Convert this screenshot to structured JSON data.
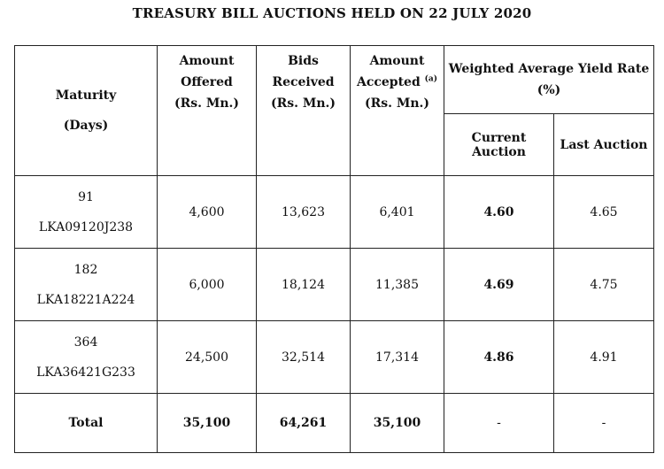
{
  "title": "TREASURY BILL AUCTIONS HELD ON 22 JULY 2020",
  "headers": {
    "maturity": [
      "Maturity",
      "(Days)"
    ],
    "amount_offered": [
      "Amount",
      "Offered",
      "(Rs. Mn.)"
    ],
    "bids_received": [
      "Bids",
      "Received",
      "(Rs. Mn.)"
    ],
    "amount_accepted": [
      "Amount",
      "Accepted",
      "(a)",
      "(Rs. Mn.)"
    ],
    "yield_group": [
      "Weighted Average Yield Rate",
      "(%)"
    ],
    "current_auction": "Current Auction",
    "last_auction": "Last Auction"
  },
  "rows": [
    {
      "days": "91",
      "isin": "LKA09120J238",
      "offered": "4,600",
      "bids": "13,623",
      "accepted": "6,401",
      "current": "4.60",
      "last": "4.65"
    },
    {
      "days": "182",
      "isin": "LKA18221A224",
      "offered": "6,000",
      "bids": "18,124",
      "accepted": "11,385",
      "current": "4.69",
      "last": "4.75"
    },
    {
      "days": "364",
      "isin": "LKA36421G233",
      "offered": "24,500",
      "bids": "32,514",
      "accepted": "17,314",
      "current": "4.86",
      "last": "4.91"
    }
  ],
  "total": {
    "label": "Total",
    "offered": "35,100",
    "bids": "64,261",
    "accepted": "35,100",
    "current": "-",
    "last": "-"
  }
}
